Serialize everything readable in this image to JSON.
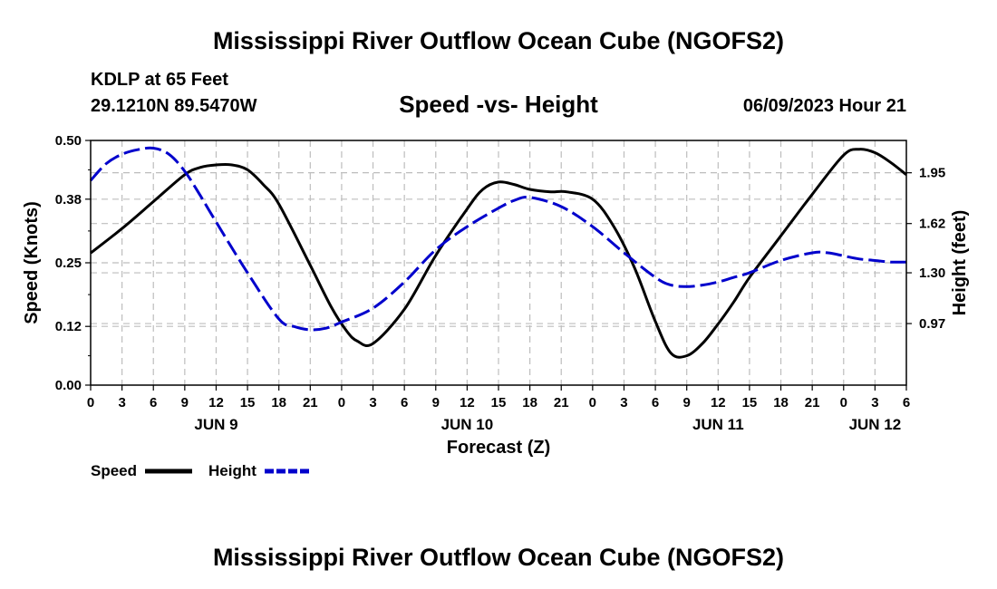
{
  "header": {
    "title": "Mississippi River Outflow Ocean Cube (NGOFS2)",
    "station": "KDLP at 65 Feet",
    "coords": "29.1210N  89.5470W",
    "timestamp": "06/09/2023 Hour 21",
    "footer_title": "Mississippi River Outflow Ocean Cube (NGOFS2)"
  },
  "chart_data": {
    "type": "line",
    "title": "Speed -vs- Height",
    "xlabel": "Forecast (Z)",
    "ylabel": "Speed (Knots)",
    "y2label": "Height (feet)",
    "x_range": [
      0,
      78
    ],
    "ylim": [
      0,
      0.5
    ],
    "y2lim": [
      0.57,
      2.16
    ],
    "x_tick_hours": [
      0,
      3,
      6,
      9,
      12,
      15,
      18,
      21,
      24,
      27,
      30,
      33,
      36,
      39,
      42,
      45,
      48,
      51,
      54,
      57,
      60,
      63,
      66,
      69,
      72,
      75,
      78
    ],
    "x_tick_labels": [
      "0",
      "3",
      "6",
      "9",
      "12",
      "15",
      "18",
      "21",
      "0",
      "3",
      "6",
      "9",
      "12",
      "15",
      "18",
      "21",
      "0",
      "3",
      "6",
      "9",
      "12",
      "15",
      "18",
      "21",
      "0",
      "3",
      "6"
    ],
    "date_labels": [
      {
        "label": "JUN 9",
        "hour": 12
      },
      {
        "label": "JUN 10",
        "hour": 36
      },
      {
        "label": "JUN 11",
        "hour": 60
      },
      {
        "label": "JUN 12",
        "hour": 75
      }
    ],
    "y_ticks": [
      0.0,
      0.12,
      0.25,
      0.38,
      0.5
    ],
    "y_tick_labels": [
      "0.00",
      "0.12",
      "0.25",
      "0.38",
      "0.50"
    ],
    "y2_ticks": [
      0.97,
      1.3,
      1.62,
      1.95
    ],
    "y2_tick_labels": [
      "0.97",
      "1.30",
      "1.62",
      "1.95"
    ],
    "grid": true,
    "legend_position": "bottom-left",
    "series": [
      {
        "name": "Speed",
        "axis": "left",
        "color": "#000000",
        "style": "solid",
        "x": [
          0,
          3,
          6,
          9,
          10.5,
          12,
          13.5,
          15,
          16.5,
          18,
          21,
          23,
          24.5,
          25.5,
          27,
          30,
          33,
          36,
          37.5,
          39,
          40.5,
          42,
          44,
          45.5,
          48,
          50,
          52,
          54,
          55.5,
          57,
          58.5,
          60,
          61.5,
          63,
          66,
          69,
          72,
          73.5,
          75,
          76.5,
          78
        ],
        "values": [
          0.27,
          0.32,
          0.375,
          0.43,
          0.445,
          0.45,
          0.45,
          0.44,
          0.41,
          0.37,
          0.245,
          0.16,
          0.11,
          0.09,
          0.085,
          0.155,
          0.265,
          0.36,
          0.4,
          0.415,
          0.41,
          0.4,
          0.395,
          0.395,
          0.38,
          0.325,
          0.24,
          0.13,
          0.065,
          0.06,
          0.085,
          0.125,
          0.17,
          0.22,
          0.305,
          0.39,
          0.47,
          0.482,
          0.475,
          0.455,
          0.43
        ]
      },
      {
        "name": "Height",
        "axis": "right",
        "color": "#0000cc",
        "style": "dashed",
        "x": [
          0,
          1.5,
          3,
          4.5,
          6,
          7.5,
          9,
          10.5,
          12,
          15,
          18,
          19.5,
          21,
          22.5,
          24,
          27,
          30,
          33,
          36,
          39,
          40.5,
          42,
          45,
          48,
          51,
          54,
          55.5,
          57,
          58.5,
          60,
          61.5,
          63,
          66,
          69,
          70.5,
          72,
          73.5,
          75,
          76.5,
          78
        ],
        "values": [
          1.9,
          2.01,
          2.07,
          2.1,
          2.11,
          2.07,
          1.96,
          1.8,
          1.63,
          1.3,
          1.0,
          0.95,
          0.93,
          0.94,
          0.98,
          1.07,
          1.24,
          1.45,
          1.6,
          1.72,
          1.77,
          1.79,
          1.73,
          1.6,
          1.43,
          1.27,
          1.22,
          1.21,
          1.22,
          1.24,
          1.27,
          1.3,
          1.38,
          1.43,
          1.43,
          1.41,
          1.39,
          1.38,
          1.37,
          1.37
        ]
      }
    ]
  }
}
